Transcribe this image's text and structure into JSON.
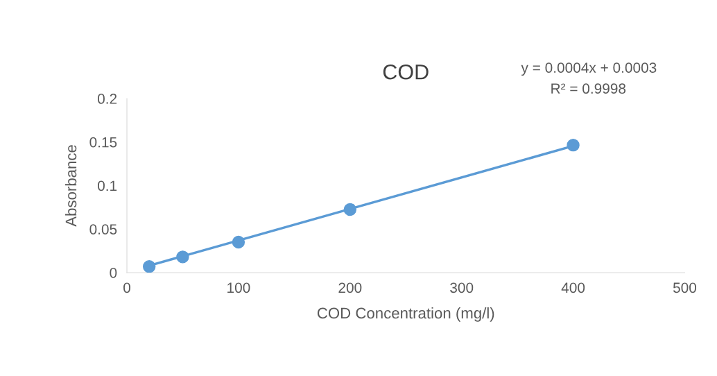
{
  "chart_data": {
    "type": "scatter",
    "title": "COD",
    "xlabel": "COD Concentration (mg/l)",
    "ylabel": "Absorbance",
    "x": [
      20,
      50,
      100,
      200,
      400
    ],
    "series": [
      {
        "color": "#5b9bd5",
        "values": [
          0.007,
          0.018,
          0.035,
          0.0725,
          0.1465
        ],
        "marker": "circle"
      },
      {
        "type": "line",
        "color": "#5b9bd5",
        "x": [
          20,
          400
        ],
        "values": [
          0.008,
          0.1455
        ],
        "marker": "none",
        "line_style": "solid"
      }
    ],
    "annotations": [
      "y = 0.0004x + 0.0003",
      "R² = 0.9998"
    ],
    "xlim": [
      0,
      500
    ],
    "xticks": [
      0,
      100,
      200,
      300,
      400,
      500
    ],
    "ylim": [
      0,
      0.2
    ],
    "yticks": [
      0,
      0.05,
      0.1,
      0.15,
      0.2
    ],
    "grid": false,
    "legend": false
  }
}
